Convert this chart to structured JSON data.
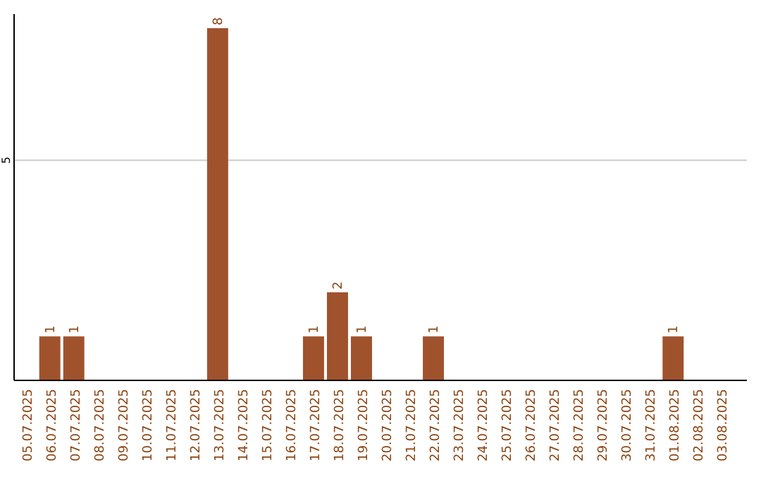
{
  "chart_data": {
    "type": "bar",
    "categories": [
      "05.07.2025",
      "06.07.2025",
      "07.07.2025",
      "08.07.2025",
      "09.07.2025",
      "10.07.2025",
      "11.07.2025",
      "12.07.2025",
      "13.07.2025",
      "14.07.2025",
      "15.07.2025",
      "16.07.2025",
      "17.07.2025",
      "18.07.2025",
      "19.07.2025",
      "20.07.2025",
      "21.07.2025",
      "22.07.2025",
      "23.07.2025",
      "24.07.2025",
      "25.07.2025",
      "26.07.2025",
      "27.07.2025",
      "28.07.2025",
      "29.07.2025",
      "30.07.2025",
      "31.07.2025",
      "01.08.2025",
      "02.08.2025",
      "03.08.2025"
    ],
    "values": [
      0,
      1,
      1,
      0,
      0,
      0,
      0,
      0,
      8,
      0,
      0,
      0,
      1,
      2,
      1,
      0,
      0,
      1,
      0,
      0,
      0,
      0,
      0,
      0,
      0,
      0,
      0,
      1,
      0,
      0
    ],
    "value_labels": [
      null,
      "1",
      "1",
      null,
      null,
      null,
      null,
      null,
      "8",
      null,
      null,
      null,
      "1",
      "2",
      "1",
      null,
      null,
      "1",
      null,
      null,
      null,
      null,
      null,
      null,
      null,
      null,
      null,
      "1",
      null,
      null
    ],
    "color": "#a0522d",
    "ylim": [
      0,
      8
    ],
    "yticks": [
      5
    ],
    "grid": "y"
  }
}
